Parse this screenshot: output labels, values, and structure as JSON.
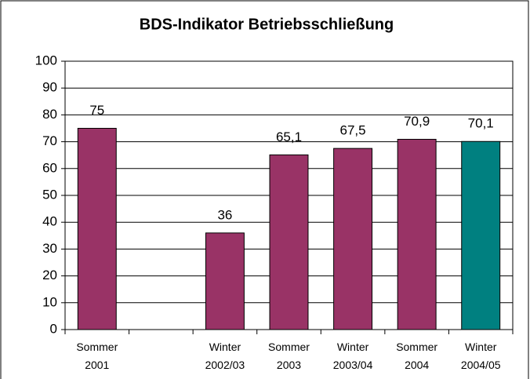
{
  "chart_data": {
    "type": "bar",
    "title": "BDS-Indikator Betriebsschließung",
    "categories": [
      "Sommer 2001",
      null,
      "Winter 2002/03",
      "Sommer 2003",
      "Winter 2003/04",
      "Sommer 2004",
      "Winter 2004/05"
    ],
    "values": [
      75,
      null,
      36,
      65.1,
      67.5,
      70.9,
      70.1
    ],
    "value_labels": [
      "75",
      null,
      "36",
      "65,1",
      "67,5",
      "70,9",
      "70,1"
    ],
    "colors": [
      "#993366",
      "#993366",
      "#993366",
      "#993366",
      "#993366",
      "#993366",
      "#008080"
    ],
    "ylim": [
      0,
      100
    ],
    "yticks": [
      0,
      10,
      20,
      30,
      40,
      50,
      60,
      70,
      80,
      90,
      100
    ],
    "grid": true
  }
}
